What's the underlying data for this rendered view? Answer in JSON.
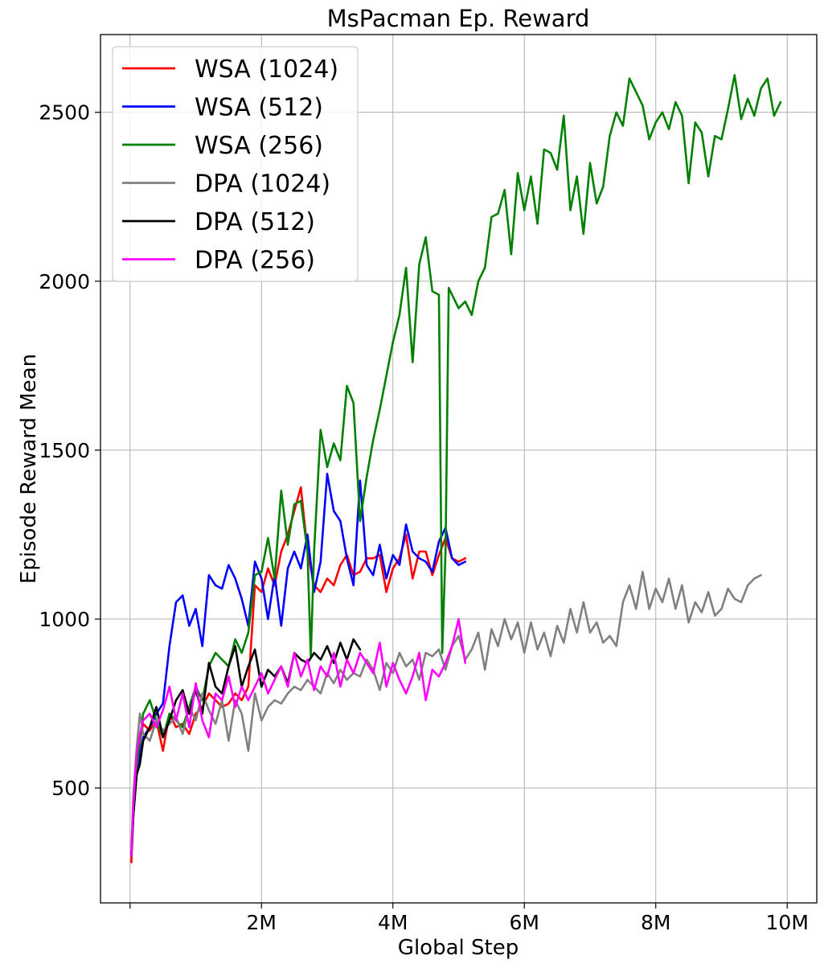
{
  "chart_data": {
    "type": "line",
    "title": "MsPacman Ep. Reward",
    "xlabel": "Global Step",
    "ylabel": "Episode Reward Mean",
    "xlim": [
      -0.45,
      10.45
    ],
    "ylim": [
      160,
      2730
    ],
    "xticks": [
      0,
      2,
      4,
      6,
      8,
      10
    ],
    "xtick_labels": [
      "",
      "2M",
      "4M",
      "6M",
      "8M",
      "10M"
    ],
    "yticks": [
      500,
      1000,
      1500,
      2000,
      2500
    ],
    "ytick_labels": [
      "500",
      "1000",
      "1500",
      "2000",
      "2500"
    ],
    "x_unit": "M steps",
    "grid": true,
    "legend_position": "top-left",
    "series": [
      {
        "name": "WSA (1024)",
        "color": "#ff0000",
        "x": [
          0.02,
          0.05,
          0.1,
          0.15,
          0.2,
          0.3,
          0.4,
          0.5,
          0.6,
          0.7,
          0.8,
          0.9,
          1.0,
          1.1,
          1.2,
          1.3,
          1.4,
          1.5,
          1.6,
          1.7,
          1.8,
          1.9,
          2.0,
          2.1,
          2.2,
          2.3,
          2.4,
          2.5,
          2.6,
          2.7,
          2.8,
          2.9,
          3.0,
          3.1,
          3.2,
          3.3,
          3.4,
          3.5,
          3.6,
          3.7,
          3.8,
          3.9,
          4.0,
          4.1,
          4.2,
          4.3,
          4.4,
          4.5,
          4.6,
          4.7,
          4.8,
          4.9,
          5.0,
          5.1
        ],
        "y": [
          280,
          420,
          560,
          640,
          690,
          670,
          700,
          610,
          720,
          680,
          690,
          660,
          720,
          740,
          780,
          760,
          740,
          750,
          780,
          760,
          800,
          1100,
          1080,
          1150,
          1100,
          1200,
          1250,
          1320,
          1390,
          1200,
          1100,
          1080,
          1120,
          1100,
          1160,
          1190,
          1130,
          1140,
          1180,
          1180,
          1190,
          1080,
          1150,
          1180,
          1250,
          1120,
          1200,
          1200,
          1130,
          1190,
          1240,
          1180,
          1170,
          1180
        ]
      },
      {
        "name": "WSA (512)",
        "color": "#0000ff",
        "x": [
          0.02,
          0.05,
          0.1,
          0.15,
          0.2,
          0.3,
          0.4,
          0.5,
          0.6,
          0.7,
          0.8,
          0.9,
          1.0,
          1.1,
          1.2,
          1.3,
          1.4,
          1.5,
          1.6,
          1.7,
          1.8,
          1.9,
          2.0,
          2.1,
          2.2,
          2.3,
          2.4,
          2.5,
          2.6,
          2.7,
          2.8,
          2.9,
          3.0,
          3.1,
          3.2,
          3.3,
          3.4,
          3.5,
          3.6,
          3.7,
          3.8,
          3.9,
          4.0,
          4.1,
          4.2,
          4.3,
          4.4,
          4.5,
          4.6,
          4.7,
          4.8,
          4.9,
          5.0,
          5.1
        ],
        "y": [
          300,
          420,
          540,
          600,
          650,
          680,
          720,
          750,
          920,
          1050,
          1070,
          980,
          1030,
          920,
          1130,
          1100,
          1090,
          1160,
          1120,
          1060,
          980,
          1170,
          1120,
          1000,
          1130,
          980,
          1150,
          1200,
          1150,
          1250,
          1080,
          1170,
          1430,
          1320,
          1290,
          1180,
          1100,
          1410,
          1160,
          1130,
          1220,
          1120,
          1190,
          1160,
          1280,
          1200,
          1180,
          1170,
          1140,
          1230,
          1270,
          1180,
          1160,
          1170
        ]
      },
      {
        "name": "WSA (256)",
        "color": "#008000",
        "x": [
          0.02,
          0.05,
          0.1,
          0.15,
          0.2,
          0.3,
          0.4,
          0.5,
          0.6,
          0.7,
          0.8,
          0.9,
          1.0,
          1.1,
          1.2,
          1.3,
          1.4,
          1.5,
          1.6,
          1.7,
          1.8,
          1.9,
          2.0,
          2.1,
          2.2,
          2.3,
          2.4,
          2.5,
          2.6,
          2.7,
          2.75,
          2.8,
          2.9,
          3.0,
          3.1,
          3.2,
          3.3,
          3.4,
          3.5,
          3.6,
          3.7,
          3.8,
          3.9,
          4.0,
          4.1,
          4.2,
          4.3,
          4.4,
          4.5,
          4.6,
          4.7,
          4.75,
          4.8,
          4.85,
          4.9,
          5.0,
          5.1,
          5.2,
          5.3,
          5.4,
          5.5,
          5.6,
          5.7,
          5.8,
          5.9,
          6.0,
          6.1,
          6.2,
          6.3,
          6.4,
          6.5,
          6.6,
          6.7,
          6.8,
          6.9,
          7.0,
          7.1,
          7.2,
          7.3,
          7.4,
          7.5,
          7.6,
          7.7,
          7.8,
          7.9,
          8.0,
          8.1,
          8.2,
          8.3,
          8.4,
          8.5,
          8.6,
          8.7,
          8.8,
          8.9,
          9.0,
          9.1,
          9.2,
          9.3,
          9.4,
          9.5,
          9.6,
          9.7,
          9.8,
          9.9
        ],
        "y": [
          300,
          420,
          560,
          640,
          720,
          760,
          700,
          650,
          720,
          700,
          680,
          740,
          800,
          760,
          860,
          900,
          880,
          860,
          940,
          900,
          960,
          1130,
          1140,
          1240,
          1120,
          1380,
          1220,
          1340,
          1350,
          1200,
          890,
          1200,
          1560,
          1450,
          1520,
          1470,
          1690,
          1640,
          1290,
          1420,
          1530,
          1620,
          1720,
          1820,
          1900,
          2040,
          1760,
          2050,
          2130,
          1970,
          1960,
          900,
          1200,
          1980,
          1960,
          1920,
          1940,
          1900,
          2000,
          2040,
          2190,
          2200,
          2270,
          2080,
          2320,
          2210,
          2310,
          2170,
          2390,
          2380,
          2330,
          2490,
          2210,
          2310,
          2140,
          2350,
          2230,
          2280,
          2430,
          2500,
          2460,
          2600,
          2560,
          2520,
          2420,
          2470,
          2500,
          2450,
          2530,
          2490,
          2290,
          2470,
          2440,
          2310,
          2430,
          2420,
          2510,
          2610,
          2480,
          2540,
          2490,
          2570,
          2600,
          2490,
          2530
        ]
      },
      {
        "name": "DPA (1024)",
        "color": "#808080",
        "x": [
          0.02,
          0.05,
          0.1,
          0.15,
          0.2,
          0.3,
          0.4,
          0.5,
          0.6,
          0.7,
          0.8,
          0.9,
          1.0,
          1.1,
          1.2,
          1.3,
          1.4,
          1.5,
          1.6,
          1.7,
          1.8,
          1.9,
          2.0,
          2.1,
          2.2,
          2.3,
          2.4,
          2.5,
          2.6,
          2.7,
          2.8,
          2.9,
          3.0,
          3.1,
          3.2,
          3.3,
          3.4,
          3.5,
          3.6,
          3.7,
          3.8,
          3.9,
          4.0,
          4.1,
          4.2,
          4.3,
          4.4,
          4.5,
          4.6,
          4.7,
          4.8,
          4.9,
          5.0,
          5.1,
          5.2,
          5.3,
          5.4,
          5.5,
          5.6,
          5.7,
          5.8,
          5.9,
          6.0,
          6.1,
          6.2,
          6.3,
          6.4,
          6.5,
          6.6,
          6.7,
          6.8,
          6.9,
          7.0,
          7.1,
          7.2,
          7.3,
          7.4,
          7.5,
          7.6,
          7.7,
          7.8,
          7.9,
          8.0,
          8.1,
          8.2,
          8.3,
          8.4,
          8.5,
          8.6,
          8.7,
          8.8,
          8.9,
          9.0,
          9.1,
          9.2,
          9.3,
          9.4,
          9.5,
          9.6
        ],
        "y": [
          320,
          480,
          620,
          720,
          660,
          640,
          700,
          670,
          690,
          710,
          660,
          740,
          700,
          780,
          730,
          690,
          760,
          640,
          760,
          720,
          610,
          780,
          700,
          740,
          760,
          750,
          780,
          800,
          790,
          820,
          800,
          780,
          840,
          810,
          850,
          820,
          840,
          830,
          880,
          850,
          790,
          870,
          840,
          900,
          860,
          880,
          820,
          900,
          890,
          910,
          850,
          920,
          950,
          880,
          910,
          960,
          850,
          970,
          920,
          1000,
          940,
          990,
          900,
          990,
          910,
          960,
          890,
          980,
          930,
          1030,
          960,
          1050,
          960,
          990,
          930,
          950,
          920,
          1050,
          1100,
          1030,
          1140,
          1030,
          1090,
          1050,
          1120,
          1030,
          1100,
          990,
          1050,
          1020,
          1080,
          1010,
          1030,
          1090,
          1060,
          1050,
          1100,
          1120,
          1130
        ]
      },
      {
        "name": "DPA (512)",
        "color": "#000000",
        "x": [
          0.02,
          0.05,
          0.1,
          0.15,
          0.2,
          0.3,
          0.4,
          0.5,
          0.6,
          0.7,
          0.8,
          0.9,
          1.0,
          1.1,
          1.2,
          1.3,
          1.4,
          1.5,
          1.6,
          1.7,
          1.8,
          1.9,
          2.0,
          2.1,
          2.2,
          2.3,
          2.4,
          2.5,
          2.6,
          2.7,
          2.8,
          2.9,
          3.0,
          3.1,
          3.2,
          3.3,
          3.4,
          3.5
        ],
        "y": [
          300,
          420,
          540,
          570,
          640,
          680,
          740,
          650,
          700,
          760,
          790,
          720,
          790,
          720,
          870,
          800,
          780,
          860,
          920,
          800,
          860,
          910,
          800,
          850,
          830,
          860,
          810,
          900,
          880,
          870,
          900,
          880,
          920,
          870,
          930,
          880,
          940,
          910
        ]
      },
      {
        "name": "DPA (256)",
        "color": "#ff00ff",
        "x": [
          0.02,
          0.05,
          0.1,
          0.15,
          0.2,
          0.3,
          0.4,
          0.5,
          0.6,
          0.7,
          0.8,
          0.9,
          1.0,
          1.1,
          1.2,
          1.3,
          1.4,
          1.5,
          1.6,
          1.7,
          1.8,
          1.9,
          2.0,
          2.1,
          2.2,
          2.3,
          2.4,
          2.5,
          2.6,
          2.7,
          2.8,
          2.9,
          3.0,
          3.1,
          3.2,
          3.3,
          3.4,
          3.5,
          3.6,
          3.7,
          3.8,
          3.9,
          4.0,
          4.1,
          4.2,
          4.3,
          4.4,
          4.5,
          4.6,
          4.7,
          4.8,
          4.9,
          5.0,
          5.1
        ],
        "y": [
          300,
          450,
          600,
          660,
          700,
          720,
          680,
          730,
          800,
          700,
          780,
          680,
          810,
          700,
          650,
          780,
          760,
          830,
          740,
          800,
          760,
          800,
          840,
          780,
          820,
          860,
          800,
          900,
          830,
          880,
          790,
          860,
          830,
          900,
          800,
          880,
          840,
          900,
          870,
          840,
          930,
          800,
          870,
          820,
          780,
          830,
          900,
          760,
          850,
          830,
          870,
          920,
          1000,
          870
        ]
      }
    ]
  }
}
